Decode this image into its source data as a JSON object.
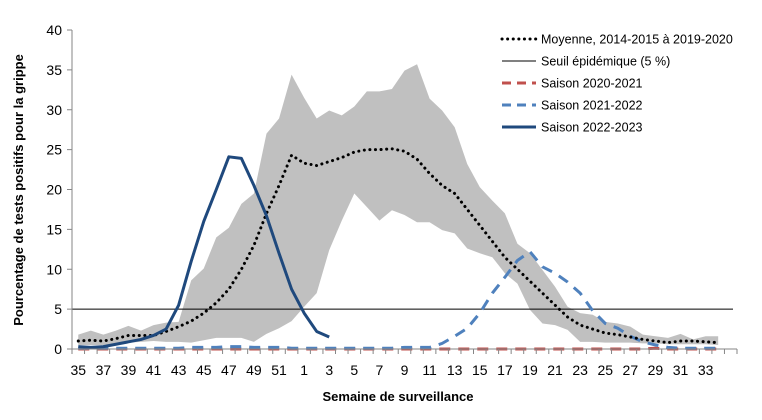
{
  "chart_data": {
    "type": "line",
    "title": "",
    "xlabel": "Semaine de surveillance",
    "ylabel": "Pourcentage de tests positifs pour la grippe",
    "ylim": [
      0,
      40
    ],
    "yticks": [
      0,
      5,
      10,
      15,
      20,
      25,
      30,
      35,
      40
    ],
    "legend_position": "top-right",
    "grid": false,
    "x": [
      35,
      36,
      37,
      38,
      39,
      40,
      41,
      42,
      43,
      44,
      45,
      46,
      47,
      48,
      49,
      50,
      51,
      52,
      1,
      2,
      3,
      4,
      5,
      6,
      7,
      8,
      9,
      10,
      11,
      12,
      13,
      14,
      15,
      16,
      17,
      18,
      19,
      20,
      21,
      22,
      23,
      24,
      25,
      26,
      27,
      28,
      29,
      30,
      31,
      32,
      33,
      34,
      35
    ],
    "xtick_labels": [
      "35",
      "37",
      "39",
      "41",
      "43",
      "45",
      "47",
      "49",
      "51",
      "1",
      "3",
      "5",
      "7",
      "9",
      "11",
      "13",
      "15",
      "17",
      "19",
      "21",
      "23",
      "25",
      "27",
      "29",
      "31",
      "33"
    ],
    "range_band": {
      "color": "#c0c0c0",
      "upper": [
        1.8,
        2.3,
        1.8,
        2.3,
        2.9,
        2.3,
        3.0,
        3.3,
        3.4,
        8.6,
        10.1,
        14.0,
        15.2,
        18.2,
        19.5,
        27.0,
        28.9,
        34.4,
        31.5,
        28.9,
        29.9,
        29.3,
        30.4,
        32.3,
        32.3,
        32.6,
        34.9,
        35.7,
        31.4,
        29.9,
        27.8,
        23.2,
        20.3,
        18.6,
        17.0,
        13.2,
        12.0,
        9.9,
        7.8,
        5.3,
        4.5,
        4.3,
        3.4,
        3.2,
        2.8,
        1.8,
        1.6,
        1.4,
        1.9,
        1.2,
        1.6,
        1.6,
        null
      ],
      "lower": [
        0.5,
        0.5,
        0.5,
        0.6,
        0.8,
        0.9,
        1.0,
        0.9,
        0.9,
        0.8,
        1.1,
        1.4,
        1.4,
        1.4,
        0.9,
        1.9,
        2.6,
        3.5,
        5.3,
        7.0,
        12.4,
        16.1,
        19.5,
        17.8,
        16.1,
        17.4,
        16.8,
        15.9,
        15.9,
        14.9,
        14.5,
        12.6,
        12.0,
        11.5,
        9.5,
        8.2,
        4.9,
        3.2,
        3.0,
        2.4,
        0.9,
        0.9,
        0.8,
        0.8,
        0.8,
        0.7,
        0.7,
        0.6,
        0.6,
        0.6,
        0.6,
        0.5,
        null
      ]
    },
    "threshold": {
      "name": "Seuil épidémique (5 %)",
      "value": 5,
      "color": "#000000"
    },
    "series": [
      {
        "name": "Moyenne, 2014-2015 à 2019-2020",
        "style": "dotted",
        "color": "#000000",
        "values": [
          1.0,
          1.1,
          1.0,
          1.3,
          1.7,
          1.7,
          1.7,
          2.2,
          2.8,
          3.5,
          4.5,
          5.8,
          7.5,
          10.0,
          13.0,
          17.0,
          20.5,
          24.3,
          23.3,
          23.0,
          23.5,
          24.0,
          24.7,
          25.0,
          25.0,
          25.1,
          24.8,
          23.8,
          22.0,
          20.5,
          19.5,
          17.5,
          15.5,
          13.5,
          11.5,
          10.0,
          8.5,
          7.0,
          5.5,
          4.0,
          3.0,
          2.5,
          2.0,
          1.8,
          1.5,
          1.2,
          1.0,
          0.8,
          1.0,
          1.0,
          0.9,
          0.8,
          null
        ]
      },
      {
        "name": "Saison 2020-2021",
        "style": "dashed",
        "color": "#c0504d",
        "values": [
          0,
          0,
          0,
          0,
          0,
          0,
          0,
          0,
          0,
          0,
          0,
          0,
          0,
          0,
          0,
          0,
          0,
          0,
          0,
          0,
          0,
          0,
          0,
          0,
          0,
          0,
          0,
          0,
          0,
          0,
          0,
          0,
          0,
          0,
          0,
          0,
          0,
          0,
          0,
          0,
          0,
          0,
          0,
          0,
          0,
          0,
          0.1,
          0,
          0,
          0,
          0,
          0,
          null
        ]
      },
      {
        "name": "Saison 2021-2022",
        "style": "dashed",
        "color": "#4f81bd",
        "values": [
          0.1,
          0.1,
          0.1,
          0.1,
          0.1,
          0.1,
          0.1,
          0.1,
          0.1,
          0.2,
          0.2,
          0.2,
          0.3,
          0.3,
          0.2,
          0.2,
          0.2,
          0.1,
          0.1,
          0.1,
          0.1,
          0.1,
          0.1,
          0.1,
          0.1,
          0.1,
          0.2,
          0.2,
          0.2,
          0.7,
          1.6,
          2.6,
          4.5,
          7.0,
          9.0,
          11.1,
          12.2,
          10.3,
          9.5,
          8.4,
          7.0,
          4.8,
          3.2,
          2.6,
          1.6,
          0.9,
          0.5,
          0.2,
          0.1,
          0.1,
          0.1,
          0.1,
          null
        ]
      },
      {
        "name": "Saison 2022-2023",
        "style": "solid",
        "color": "#1f497d",
        "values": [
          0.3,
          0.2,
          0.3,
          0.6,
          0.9,
          1.2,
          1.7,
          2.5,
          5.5,
          11.0,
          16.0,
          20.0,
          24.1,
          23.9,
          20.5,
          16.7,
          12.0,
          7.5,
          4.5,
          2.2,
          1.5,
          null,
          null,
          null,
          null,
          null,
          null,
          null,
          null,
          null,
          null,
          null,
          null,
          null,
          null,
          null,
          null,
          null,
          null,
          null,
          null,
          null,
          null,
          null,
          null,
          null,
          null,
          null,
          null,
          null,
          null,
          null,
          null
        ]
      }
    ]
  }
}
